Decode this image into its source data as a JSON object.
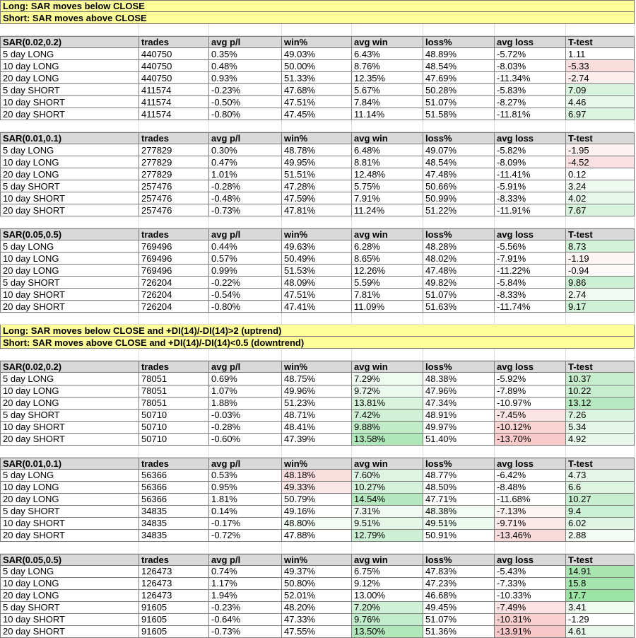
{
  "palette": {
    "banner_bg": "#ffff99",
    "header_bg": "#d9d9d9",
    "table_border": "#7a7a7a",
    "faint_grid": "#dcdcdc",
    "positive_strong": "#9be4a6",
    "negative_strong": "#f8c7c7"
  },
  "column_headers": [
    "trades",
    "avg p/l",
    "win%",
    "avg win",
    "loss%",
    "avg loss",
    "T-test"
  ],
  "column_keys": [
    "trades",
    "avg-pl",
    "win-pct",
    "avg-win",
    "loss-pct",
    "avg-loss",
    "t-test"
  ],
  "groups": [
    {
      "banners": [
        "Long: SAR moves below CLOSE",
        "Short: SAR moves above CLOSE"
      ],
      "sections": [
        {
          "title": "SAR(0.02,0.2)",
          "rows": [
            {
              "label": "5 day LONG",
              "values": [
                "440750",
                "0.35%",
                "49.03%",
                "6.43%",
                "48.89%",
                "-5.72%",
                "1.11"
              ],
              "bg": [
                null,
                null,
                null,
                null,
                null,
                null,
                null
              ]
            },
            {
              "label": "10 day LONG",
              "values": [
                "440750",
                "0.48%",
                "50.00%",
                "8.76%",
                "48.54%",
                "-8.03%",
                "-5.33"
              ],
              "bg": [
                null,
                null,
                null,
                null,
                null,
                null,
                "#f9dcdc"
              ]
            },
            {
              "label": "20 day LONG",
              "values": [
                "440750",
                "0.93%",
                "51.33%",
                "12.35%",
                "47.69%",
                "-11.34%",
                "-2.74"
              ],
              "bg": [
                null,
                null,
                null,
                null,
                null,
                null,
                "#fcecec"
              ]
            },
            {
              "label": "5 day SHORT",
              "values": [
                "411574",
                "-0.23%",
                "47.68%",
                "5.67%",
                "50.28%",
                "-5.83%",
                "7.09"
              ],
              "bg": [
                null,
                null,
                null,
                null,
                null,
                null,
                "#d9f4de"
              ]
            },
            {
              "label": "10 day SHORT",
              "values": [
                "411574",
                "-0.50%",
                "47.51%",
                "7.84%",
                "51.07%",
                "-8.27%",
                "4.46"
              ],
              "bg": [
                null,
                null,
                null,
                null,
                null,
                null,
                "#e8f8eb"
              ]
            },
            {
              "label": "20 day SHORT",
              "values": [
                "411574",
                "-0.80%",
                "47.45%",
                "11.14%",
                "51.58%",
                "-11.81%",
                "6.97"
              ],
              "bg": [
                null,
                null,
                null,
                null,
                null,
                null,
                "#daf4df"
              ]
            }
          ]
        },
        {
          "title": "SAR(0.01,0.1)",
          "rows": [
            {
              "label": "5 day LONG",
              "values": [
                "277829",
                "0.30%",
                "48.78%",
                "6.48%",
                "49.07%",
                "-5.82%",
                "-1.95"
              ],
              "bg": [
                null,
                null,
                null,
                null,
                null,
                null,
                "#fdf1f1"
              ]
            },
            {
              "label": "10 day LONG",
              "values": [
                "277829",
                "0.47%",
                "49.95%",
                "8.81%",
                "48.54%",
                "-8.09%",
                "-4.52"
              ],
              "bg": [
                null,
                null,
                null,
                null,
                null,
                null,
                "#fae0e0"
              ]
            },
            {
              "label": "20 day LONG",
              "values": [
                "277829",
                "1.01%",
                "51.51%",
                "12.48%",
                "47.48%",
                "-11.41%",
                "0.12"
              ],
              "bg": [
                null,
                null,
                null,
                null,
                null,
                null,
                null
              ]
            },
            {
              "label": "5 day SHORT",
              "values": [
                "257476",
                "-0.28%",
                "47.28%",
                "5.75%",
                "50.66%",
                "-5.91%",
                "3.24"
              ],
              "bg": [
                null,
                null,
                null,
                null,
                null,
                null,
                "#eefaf0"
              ]
            },
            {
              "label": "10 day SHORT",
              "values": [
                "257476",
                "-0.48%",
                "47.59%",
                "7.91%",
                "50.99%",
                "-8.33%",
                "4.02"
              ],
              "bg": [
                null,
                null,
                null,
                null,
                null,
                null,
                "#e9f8ec"
              ]
            },
            {
              "label": "20 day SHORT",
              "values": [
                "257476",
                "-0.73%",
                "47.81%",
                "11.24%",
                "51.22%",
                "-11.91%",
                "7.67"
              ],
              "bg": [
                null,
                null,
                null,
                null,
                null,
                null,
                "#d7f3dc"
              ]
            }
          ]
        },
        {
          "title": "SAR(0.05,0.5)",
          "rows": [
            {
              "label": "5 day LONG",
              "values": [
                "769496",
                "0.44%",
                "49.63%",
                "6.28%",
                "48.28%",
                "-5.56%",
                "8.73"
              ],
              "bg": [
                null,
                null,
                null,
                null,
                null,
                null,
                "#d2f2d8"
              ]
            },
            {
              "label": "10 day LONG",
              "values": [
                "769496",
                "0.57%",
                "50.49%",
                "8.65%",
                "48.02%",
                "-7.91%",
                "-1.19"
              ],
              "bg": [
                null,
                null,
                null,
                null,
                null,
                null,
                "#fdf4f4"
              ]
            },
            {
              "label": "20 day LONG",
              "values": [
                "769496",
                "0.99%",
                "51.53%",
                "12.26%",
                "47.48%",
                "-11.22%",
                "-0.94"
              ],
              "bg": [
                null,
                null,
                null,
                null,
                null,
                null,
                "#fef9f9"
              ]
            },
            {
              "label": "5 day SHORT",
              "values": [
                "726204",
                "-0.22%",
                "48.09%",
                "5.59%",
                "49.82%",
                "-5.84%",
                "9.86"
              ],
              "bg": [
                null,
                null,
                null,
                null,
                null,
                null,
                "#ccf0d3"
              ]
            },
            {
              "label": "10 day SHORT",
              "values": [
                "726204",
                "-0.54%",
                "47.51%",
                "7.81%",
                "51.07%",
                "-8.33%",
                "2.74"
              ],
              "bg": [
                null,
                null,
                null,
                null,
                null,
                null,
                "#f1fbf3"
              ]
            },
            {
              "label": "20 day SHORT",
              "values": [
                "726204",
                "-0.80%",
                "47.41%",
                "11.09%",
                "51.63%",
                "-11.74%",
                "9.17"
              ],
              "bg": [
                null,
                null,
                null,
                null,
                null,
                null,
                "#cff1d5"
              ]
            }
          ]
        }
      ]
    },
    {
      "banners": [
        "Long: SAR moves below CLOSE and +DI(14)/-DI(14)>2 (uptrend)",
        "Short: SAR moves above CLOSE and +DI(14)/-DI(14)<0.5 (downtrend)"
      ],
      "sections": [
        {
          "title": "SAR(0.02,0.2)",
          "rows": [
            {
              "label": "5 day LONG",
              "values": [
                "78051",
                "0.69%",
                "48.75%",
                "7.29%",
                "48.38%",
                "-5.92%",
                "10.37"
              ],
              "bg": [
                null,
                null,
                null,
                "#effaf1",
                null,
                null,
                "#c6eecd"
              ]
            },
            {
              "label": "10 day LONG",
              "values": [
                "78051",
                "1.07%",
                "49.96%",
                "9.72%",
                "47.96%",
                "-7.89%",
                "10.22"
              ],
              "bg": [
                null,
                null,
                null,
                "#ecf9ee",
                null,
                null,
                "#c7eece"
              ]
            },
            {
              "label": "20 day LONG",
              "values": [
                "78051",
                "1.88%",
                "51.23%",
                "13.81%",
                "47.34%",
                "-10.97%",
                "13.12"
              ],
              "bg": [
                null,
                null,
                null,
                "#d7f3db",
                null,
                null,
                "#b7e9c0"
              ]
            },
            {
              "label": "5 day SHORT",
              "values": [
                "50710",
                "-0.03%",
                "48.71%",
                "7.42%",
                "48.91%",
                "-7.45%",
                "7.26"
              ],
              "bg": [
                null,
                null,
                null,
                "#d0f1d6",
                null,
                "#fce4e4",
                "#dcf5e0"
              ]
            },
            {
              "label": "10 day SHORT",
              "values": [
                "50710",
                "-0.28%",
                "48.41%",
                "9.88%",
                "49.97%",
                "-10.12%",
                "5.34"
              ],
              "bg": [
                null,
                null,
                null,
                "#c0ecc8",
                null,
                "#fad3d3",
                "#e5f7e8"
              ]
            },
            {
              "label": "20 day SHORT",
              "values": [
                "50710",
                "-0.60%",
                "47.39%",
                "13.58%",
                "51.40%",
                "-13.70%",
                "4.92"
              ],
              "bg": [
                null,
                null,
                null,
                "#aee7b8",
                null,
                "#f8caca",
                "#e7f8ea"
              ]
            }
          ]
        },
        {
          "title": "SAR(0.01,0.1)",
          "rows": [
            {
              "label": "5 day LONG",
              "values": [
                "56366",
                "0.53%",
                "48.18%",
                "7.60%",
                "48.77%",
                "-6.42%",
                "4.73"
              ],
              "bg": [
                null,
                null,
                "#fbdede",
                "#dff5e3",
                null,
                null,
                "#e6f7e9"
              ]
            },
            {
              "label": "10 day LONG",
              "values": [
                "56366",
                "0.95%",
                "49.33%",
                "10.27%",
                "48.50%",
                "-8.48%",
                "6.6"
              ],
              "bg": [
                null,
                null,
                "#fce7e7",
                "#d5f2da",
                null,
                null,
                "#def5e2"
              ]
            },
            {
              "label": "20 day LONG",
              "values": [
                "56366",
                "1.81%",
                "50.79%",
                "14.54%",
                "47.71%",
                "-11.68%",
                "10.27"
              ],
              "bg": [
                null,
                null,
                null,
                "#b5e8bf",
                null,
                null,
                "#c7eece"
              ]
            },
            {
              "label": "5 day SHORT",
              "values": [
                "34835",
                "0.14%",
                "49.16%",
                "7.31%",
                "48.38%",
                "-7.13%",
                "9.4"
              ],
              "bg": [
                null,
                null,
                null,
                "#f0faf2",
                "#f3fbf5",
                "#fdf4f4",
                "#ccf0d3"
              ]
            },
            {
              "label": "10 day SHORT",
              "values": [
                "34835",
                "-0.17%",
                "48.80%",
                "9.51%",
                "49.51%",
                "-9.71%",
                "6.02"
              ],
              "bg": [
                null,
                null,
                "#f2fbf4",
                "#e4f7e7",
                "#ebf9ee",
                "#fbe9e9",
                "#e0f6e4"
              ]
            },
            {
              "label": "20 day SHORT",
              "values": [
                "34835",
                "-0.72%",
                "47.88%",
                "12.79%",
                "50.91%",
                "-13.46%",
                "2.88"
              ],
              "bg": [
                null,
                null,
                null,
                "#cdf0d4",
                null,
                "#f9dada",
                "#f2fbf4"
              ]
            }
          ]
        },
        {
          "title": "SAR(0.05,0.5)",
          "rows": [
            {
              "label": "5 day LONG",
              "values": [
                "126473",
                "0.74%",
                "49.37%",
                "6.75%",
                "47.83%",
                "-5.43%",
                "14.91"
              ],
              "bg": [
                null,
                null,
                null,
                null,
                null,
                null,
                "#a8e6b1"
              ]
            },
            {
              "label": "10 day LONG",
              "values": [
                "126473",
                "1.17%",
                "50.80%",
                "9.12%",
                "47.23%",
                "-7.33%",
                "15.8"
              ],
              "bg": [
                null,
                null,
                null,
                null,
                null,
                null,
                "#a4e6ae"
              ]
            },
            {
              "label": "20 day LONG",
              "values": [
                "126473",
                "1.94%",
                "52.01%",
                "13.00%",
                "46.68%",
                "-10.33%",
                "17.7"
              ],
              "bg": [
                null,
                null,
                null,
                null,
                null,
                null,
                "#9be4a6"
              ]
            },
            {
              "label": "5 day SHORT",
              "values": [
                "91605",
                "-0.23%",
                "48.20%",
                "7.20%",
                "49.45%",
                "-7.49%",
                "3.41"
              ],
              "bg": [
                null,
                null,
                null,
                "#cff1d5",
                null,
                "#fce2e2",
                "#effaf1"
              ]
            },
            {
              "label": "10 day SHORT",
              "values": [
                "91605",
                "-0.64%",
                "47.33%",
                "9.76%",
                "51.07%",
                "-10.31%",
                "-1.29"
              ],
              "bg": [
                null,
                null,
                null,
                "#c2edca",
                null,
                "#f9d0d0",
                null
              ]
            },
            {
              "label": "20 day SHORT",
              "values": [
                "91605",
                "-0.73%",
                "47.55%",
                "13.50%",
                "51.36%",
                "-13.91%",
                "4.61"
              ],
              "bg": [
                null,
                null,
                null,
                "#b0e8ba",
                null,
                "#f8c7c7",
                "#e7f8ea"
              ]
            }
          ]
        }
      ]
    }
  ]
}
